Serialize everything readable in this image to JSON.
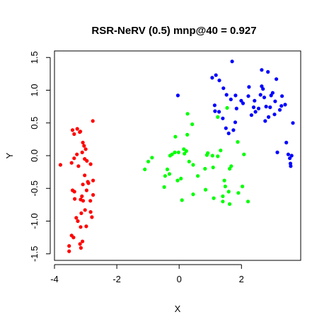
{
  "chart_data": {
    "type": "scatter",
    "title": "RSR-NeRV (0.5) mnp@40 = 0.927",
    "xlabel": "X",
    "ylabel": "Y",
    "xlim": [
      -4.0,
      3.9
    ],
    "ylim": [
      -1.6,
      1.6
    ],
    "x_ticks": [
      -4,
      -2,
      0,
      2
    ],
    "x_tick_labels": [
      "-4",
      "-2",
      "0",
      "2"
    ],
    "y_ticks": [
      -1.5,
      -1.0,
      -0.5,
      0.0,
      0.5,
      1.0,
      1.5
    ],
    "y_tick_labels": [
      "-1.5",
      "-1.0",
      "-0.5",
      "0.0",
      "0.5",
      "1.0",
      "1.5"
    ],
    "grid": false,
    "legend": false,
    "series": [
      {
        "color": "#ff0000",
        "points": [
          [
            -3.81,
            -0.14
          ],
          [
            -3.42,
            0.39
          ],
          [
            -3.27,
            0.41
          ],
          [
            -3.17,
            0.37
          ],
          [
            -3.19,
            0.36
          ],
          [
            -3.37,
            0.33
          ],
          [
            -3.09,
            0.2
          ],
          [
            -3.05,
            0.15
          ],
          [
            -3.0,
            0.1
          ],
          [
            -3.11,
            0.05
          ],
          [
            -3.28,
            0.02
          ],
          [
            -3.37,
            -0.04
          ],
          [
            -3.03,
            -0.05
          ],
          [
            -2.96,
            -0.08
          ],
          [
            -3.45,
            -0.11
          ],
          [
            -3.23,
            -0.16
          ],
          [
            -2.84,
            -0.13
          ],
          [
            -3.03,
            -0.3
          ],
          [
            -2.93,
            -0.4
          ],
          [
            -3.09,
            -0.44
          ],
          [
            -3.42,
            -0.53
          ],
          [
            -3.36,
            -0.55
          ],
          [
            -2.97,
            -0.53
          ],
          [
            -3.12,
            -0.62
          ],
          [
            -3.16,
            -0.67
          ],
          [
            -3.08,
            -0.69
          ],
          [
            -3.35,
            -0.66
          ],
          [
            -2.85,
            -0.69
          ],
          [
            -3.02,
            -0.83
          ],
          [
            -2.84,
            -0.86
          ],
          [
            -3.3,
            -0.95
          ],
          [
            -2.8,
            -0.94
          ],
          [
            -3.25,
            -1.0
          ],
          [
            -3.16,
            -1.09
          ],
          [
            -2.98,
            -1.08
          ],
          [
            -3.45,
            -1.22
          ],
          [
            -3.39,
            -1.25
          ],
          [
            -3.1,
            -1.31
          ],
          [
            -3.18,
            -1.35
          ],
          [
            -3.53,
            -1.38
          ],
          [
            -3.15,
            -1.41
          ],
          [
            -3.53,
            -1.46
          ],
          [
            -2.76,
            -0.38
          ],
          [
            -2.91,
            -0.42
          ],
          [
            -2.76,
            -0.6
          ],
          [
            -2.77,
            0.53
          ],
          [
            -3.14,
            -0.88
          ]
        ]
      },
      {
        "color": "#00ff00",
        "points": [
          [
            -1.1,
            -0.21
          ],
          [
            -0.99,
            -0.09
          ],
          [
            -0.87,
            -0.03
          ],
          [
            -0.48,
            -0.48
          ],
          [
            -0.45,
            -0.31
          ],
          [
            -0.38,
            -0.21
          ],
          [
            -0.31,
            -0.28
          ],
          [
            -0.23,
            0.02
          ],
          [
            -0.14,
            0.05
          ],
          [
            -0.05,
            -0.38
          ],
          [
            0.06,
            -0.35
          ],
          [
            0.15,
            0.1
          ],
          [
            0.23,
            0.07
          ],
          [
            0.32,
            -0.09
          ],
          [
            0.26,
            0.32
          ],
          [
            0.27,
            0.64
          ],
          [
            0.42,
            0.48
          ],
          [
            0.45,
            -0.59
          ],
          [
            0.6,
            -0.31
          ],
          [
            0.45,
            -0.14
          ],
          [
            0.85,
            -0.52
          ],
          [
            0.83,
            -0.2
          ],
          [
            0.92,
            0.04
          ],
          [
            1.09,
            -0.18
          ],
          [
            1.07,
            0.0
          ],
          [
            1.11,
            -0.65
          ],
          [
            1.24,
            0.59
          ],
          [
            1.4,
            -0.62
          ],
          [
            1.33,
            0.08
          ],
          [
            1.59,
            -0.55
          ],
          [
            1.45,
            -0.38
          ],
          [
            1.4,
            -0.7
          ],
          [
            1.62,
            -0.74
          ],
          [
            1.67,
            -0.16
          ],
          [
            1.88,
            0.21
          ],
          [
            1.9,
            -0.57
          ],
          [
            2.03,
            -0.47
          ],
          [
            2.08,
            0.02
          ],
          [
            -0.12,
            0.29
          ],
          [
            -0.02,
            0.05
          ],
          [
            0.09,
            -0.68
          ],
          [
            0.17,
            0.03
          ],
          [
            1.54,
            0.73
          ],
          [
            1.24,
            -0.01
          ],
          [
            0.89,
            0.01
          ],
          [
            -0.29,
            0.0
          ],
          [
            1.48,
            -0.47
          ],
          [
            1.62,
            -0.2
          ],
          [
            2.21,
            -0.7
          ]
        ]
      },
      {
        "color": "#0000ff",
        "points": [
          [
            -0.04,
            0.92
          ],
          [
            1.06,
            1.19
          ],
          [
            1.18,
            1.23
          ],
          [
            1.29,
            1.15
          ],
          [
            1.42,
            1.03
          ],
          [
            1.52,
            0.93
          ],
          [
            1.7,
            1.44
          ],
          [
            1.66,
            0.86
          ],
          [
            1.81,
            0.92
          ],
          [
            1.14,
            0.77
          ],
          [
            1.28,
            0.67
          ],
          [
            1.4,
            0.57
          ],
          [
            1.5,
            0.42
          ],
          [
            1.59,
            0.34
          ],
          [
            1.74,
            0.39
          ],
          [
            1.8,
            0.51
          ],
          [
            1.84,
            0.72
          ],
          [
            1.99,
            0.84
          ],
          [
            2.05,
            0.8
          ],
          [
            2.22,
            0.91
          ],
          [
            2.24,
            1.05
          ],
          [
            2.32,
            0.62
          ],
          [
            2.39,
            0.74
          ],
          [
            2.42,
            0.84
          ],
          [
            2.45,
            0.67
          ],
          [
            2.55,
            0.72
          ],
          [
            2.61,
            0.93
          ],
          [
            2.65,
            1.06
          ],
          [
            2.69,
            1.02
          ],
          [
            2.73,
            0.89
          ],
          [
            2.76,
            0.53
          ],
          [
            2.79,
            0.75
          ],
          [
            2.87,
            0.59
          ],
          [
            2.92,
            0.74
          ],
          [
            2.95,
            0.92
          ],
          [
            3.0,
            0.96
          ],
          [
            3.08,
            0.83
          ],
          [
            3.06,
            0.63
          ],
          [
            3.12,
            1.17
          ],
          [
            3.23,
            0.7
          ],
          [
            3.28,
            0.76
          ],
          [
            3.3,
            0.91
          ],
          [
            3.4,
            0.78
          ],
          [
            3.44,
            0.2
          ],
          [
            3.5,
            0.02
          ],
          [
            3.55,
            -0.04
          ],
          [
            3.57,
            -0.12
          ],
          [
            3.58,
            -0.16
          ],
          [
            3.61,
            0.0
          ],
          [
            3.65,
            0.5
          ],
          [
            2.65,
            1.31
          ],
          [
            2.85,
            1.28
          ],
          [
            3.15,
            0.05
          ],
          [
            1.15,
            0.68
          ]
        ]
      }
    ]
  }
}
